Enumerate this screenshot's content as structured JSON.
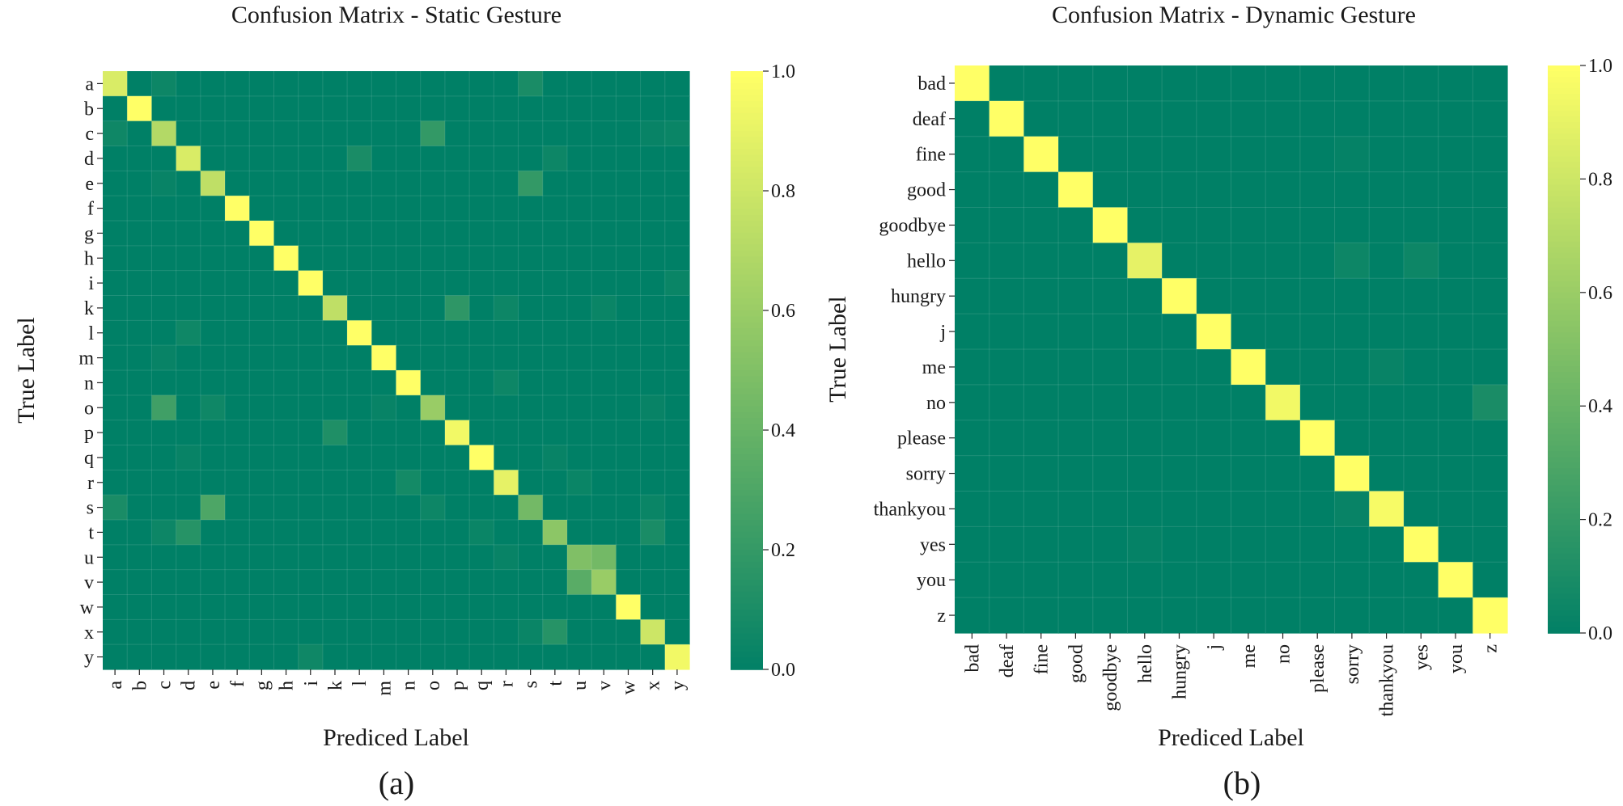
{
  "chart_data": [
    {
      "type": "heatmap",
      "panel_label": "(a)",
      "title": "Confusion Matrix - Static Gesture",
      "xlabel": "Prediced Label",
      "ylabel": "True Label",
      "labels": [
        "a",
        "b",
        "c",
        "d",
        "e",
        "f",
        "g",
        "h",
        "i",
        "k",
        "l",
        "m",
        "n",
        "o",
        "p",
        "q",
        "r",
        "s",
        "t",
        "u",
        "v",
        "w",
        "x",
        "y"
      ],
      "colorbar": {
        "range": [
          0.0,
          1.0
        ],
        "ticks": [
          "0.0",
          "0.2",
          "0.4",
          "0.6",
          "0.8",
          "1.0"
        ]
      },
      "diagonal": [
        0.85,
        1.0,
        0.7,
        0.85,
        0.75,
        1.0,
        1.0,
        1.0,
        1.0,
        0.75,
        1.0,
        1.0,
        1.0,
        0.6,
        0.95,
        1.0,
        0.9,
        0.45,
        0.55,
        0.5,
        0.6,
        1.0,
        0.8,
        0.95
      ],
      "off_diagonal": [
        {
          "row": "a",
          "col": "c",
          "value": 0.05
        },
        {
          "row": "a",
          "col": "s",
          "value": 0.1
        },
        {
          "row": "c",
          "col": "a",
          "value": 0.06
        },
        {
          "row": "c",
          "col": "o",
          "value": 0.2
        },
        {
          "row": "c",
          "col": "x",
          "value": 0.03
        },
        {
          "row": "c",
          "col": "y",
          "value": 0.04
        },
        {
          "row": "d",
          "col": "l",
          "value": 0.1
        },
        {
          "row": "d",
          "col": "t",
          "value": 0.05
        },
        {
          "row": "e",
          "col": "s",
          "value": 0.2
        },
        {
          "row": "e",
          "col": "c",
          "value": 0.03
        },
        {
          "row": "i",
          "col": "y",
          "value": 0.04
        },
        {
          "row": "k",
          "col": "p",
          "value": 0.18
        },
        {
          "row": "k",
          "col": "r",
          "value": 0.05
        },
        {
          "row": "k",
          "col": "v",
          "value": 0.04
        },
        {
          "row": "l",
          "col": "d",
          "value": 0.06
        },
        {
          "row": "m",
          "col": "c",
          "value": 0.03
        },
        {
          "row": "n",
          "col": "r",
          "value": 0.05
        },
        {
          "row": "o",
          "col": "c",
          "value": 0.25
        },
        {
          "row": "o",
          "col": "e",
          "value": 0.06
        },
        {
          "row": "o",
          "col": "m",
          "value": 0.03
        },
        {
          "row": "o",
          "col": "x",
          "value": 0.03
        },
        {
          "row": "p",
          "col": "k",
          "value": 0.12
        },
        {
          "row": "q",
          "col": "d",
          "value": 0.03
        },
        {
          "row": "q",
          "col": "t",
          "value": 0.03
        },
        {
          "row": "r",
          "col": "n",
          "value": 0.08
        },
        {
          "row": "r",
          "col": "u",
          "value": 0.04
        },
        {
          "row": "s",
          "col": "a",
          "value": 0.1
        },
        {
          "row": "s",
          "col": "e",
          "value": 0.3
        },
        {
          "row": "s",
          "col": "o",
          "value": 0.05
        },
        {
          "row": "s",
          "col": "x",
          "value": 0.04
        },
        {
          "row": "t",
          "col": "d",
          "value": 0.15
        },
        {
          "row": "t",
          "col": "c",
          "value": 0.05
        },
        {
          "row": "t",
          "col": "q",
          "value": 0.04
        },
        {
          "row": "t",
          "col": "x",
          "value": 0.1
        },
        {
          "row": "u",
          "col": "v",
          "value": 0.45
        },
        {
          "row": "u",
          "col": "r",
          "value": 0.03
        },
        {
          "row": "v",
          "col": "u",
          "value": 0.35
        },
        {
          "row": "x",
          "col": "t",
          "value": 0.15
        },
        {
          "row": "x",
          "col": "s",
          "value": 0.04
        },
        {
          "row": "y",
          "col": "i",
          "value": 0.06
        }
      ]
    },
    {
      "type": "heatmap",
      "panel_label": "(b)",
      "title": "Confusion Matrix - Dynamic Gesture",
      "xlabel": "Prediced Label",
      "ylabel": "True Label",
      "labels": [
        "bad",
        "deaf",
        "fine",
        "good",
        "goodbye",
        "hello",
        "hungry",
        "j",
        "me",
        "no",
        "please",
        "sorry",
        "thankyou",
        "yes",
        "you",
        "z"
      ],
      "colorbar": {
        "range": [
          0.0,
          1.0
        ],
        "ticks": [
          "0.0",
          "0.2",
          "0.4",
          "0.6",
          "0.8",
          "1.0"
        ]
      },
      "diagonal": [
        1.0,
        1.0,
        1.0,
        1.0,
        1.0,
        0.9,
        1.0,
        1.0,
        1.0,
        0.95,
        1.0,
        1.0,
        0.97,
        1.0,
        1.0,
        1.0
      ],
      "off_diagonal": [
        {
          "row": "fine",
          "col": "sorry",
          "value": 0.02
        },
        {
          "row": "hello",
          "col": "sorry",
          "value": 0.05
        },
        {
          "row": "hello",
          "col": "yes",
          "value": 0.05
        },
        {
          "row": "me",
          "col": "thankyou",
          "value": 0.03
        },
        {
          "row": "no",
          "col": "z",
          "value": 0.1
        },
        {
          "row": "thankyou",
          "col": "sorry",
          "value": 0.03
        },
        {
          "row": "yes",
          "col": "hello",
          "value": 0.02
        }
      ]
    }
  ]
}
